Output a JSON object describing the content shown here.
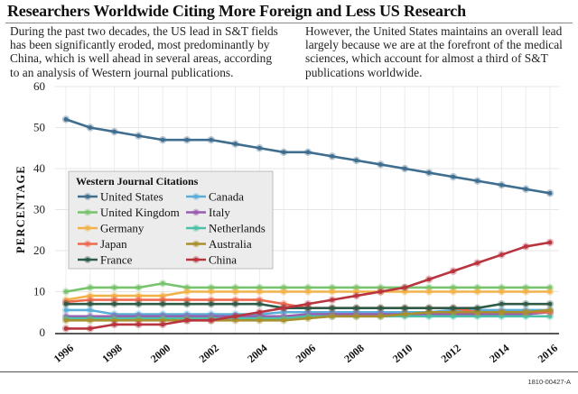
{
  "header": {
    "title": "Researchers Worldwide Citing More Foreign and Less US Research",
    "left_text": "During the past two decades, the US lead in S&T fields has been significantly eroded, most predominantly by China, which is well ahead in several areas, according to an analysis of Western journal publications.",
    "right_text": "However, the United States maintains an overall lead largely because we are at the forefront of the medical sciences, which account for almost a third of S&T publications worldwide."
  },
  "footer": {
    "code": "1810-00427-A"
  },
  "chart_data": {
    "type": "line",
    "title": "",
    "xlabel": "",
    "ylabel": "PERCENTAGE",
    "ylim": [
      0,
      60
    ],
    "yticks": [
      0,
      10,
      20,
      30,
      40,
      50,
      60
    ],
    "xticks": [
      1996,
      1998,
      2000,
      2002,
      2004,
      2006,
      2008,
      2010,
      2012,
      2014,
      2016
    ],
    "grid": true,
    "legend": {
      "title": "Western Journal Citations",
      "placement": "center-left"
    },
    "x": [
      1996,
      1997,
      1998,
      1999,
      2000,
      2001,
      2002,
      2003,
      2004,
      2005,
      2006,
      2007,
      2008,
      2009,
      2010,
      2011,
      2012,
      2013,
      2014,
      2015,
      2016
    ],
    "series": [
      {
        "name": "United States",
        "color": "#3f6e8f",
        "values": [
          52,
          50,
          49,
          48,
          47,
          47,
          47,
          46,
          45,
          44,
          44,
          43,
          42,
          41,
          40,
          39,
          38,
          37,
          36,
          35,
          34
        ]
      },
      {
        "name": "Canada",
        "color": "#5aaed8",
        "values": [
          5.5,
          5.5,
          4.5,
          4.5,
          4.5,
          4.5,
          4.5,
          4.5,
          4.5,
          5,
          5,
          5,
          5,
          5,
          5,
          5,
          5.5,
          5.5,
          5.5,
          5.5,
          5.5
        ]
      },
      {
        "name": "United Kingdom",
        "color": "#77c46c",
        "values": [
          10,
          11,
          11,
          11,
          12,
          11,
          11,
          11,
          11,
          11,
          11,
          11,
          11,
          11,
          11,
          11,
          11,
          11,
          11,
          11,
          11
        ]
      },
      {
        "name": "Italy",
        "color": "#9a5bb0",
        "values": [
          4,
          4,
          4,
          4,
          4,
          4,
          4,
          4,
          4,
          4,
          4.5,
          4.5,
          4.5,
          4.5,
          4.5,
          4.5,
          4.5,
          4.5,
          4.5,
          4.5,
          5
        ]
      },
      {
        "name": "Germany",
        "color": "#f2b24a",
        "values": [
          8,
          9,
          9,
          9,
          9,
          10,
          10,
          10,
          10,
          10,
          10,
          10,
          10,
          10,
          10,
          10,
          10,
          10,
          10,
          10,
          10
        ]
      },
      {
        "name": "Netherlands",
        "color": "#4cc0a8",
        "values": [
          3.5,
          3.5,
          3.5,
          3.5,
          3.5,
          3.5,
          3.5,
          3.5,
          3.5,
          3.5,
          4,
          4,
          4,
          4,
          4,
          4,
          4,
          4,
          4,
          4,
          4
        ]
      },
      {
        "name": "Japan",
        "color": "#ee6a4e",
        "values": [
          7.5,
          8,
          8,
          8,
          8,
          8,
          8,
          8,
          8,
          7,
          6,
          6,
          6,
          6,
          6,
          6,
          6,
          5,
          5,
          5,
          5
        ]
      },
      {
        "name": "Australia",
        "color": "#a8902e",
        "values": [
          3,
          3,
          3,
          3,
          3,
          3,
          3,
          3,
          3,
          3,
          3.5,
          4,
          4,
          4,
          4.5,
          5,
          5,
          5,
          5,
          5,
          5.5
        ]
      },
      {
        "name": "France",
        "color": "#2f5a47",
        "values": [
          7,
          7,
          7,
          7,
          7,
          7,
          7,
          7,
          7,
          6,
          6,
          6,
          6,
          6,
          6,
          6,
          6,
          6,
          7,
          7,
          7
        ]
      },
      {
        "name": "China",
        "color": "#b8343f",
        "values": [
          1,
          1,
          2,
          2,
          2,
          3,
          3,
          4,
          5,
          6,
          7,
          8,
          9,
          10,
          11,
          13,
          15,
          17,
          19,
          21,
          22
        ]
      }
    ]
  }
}
